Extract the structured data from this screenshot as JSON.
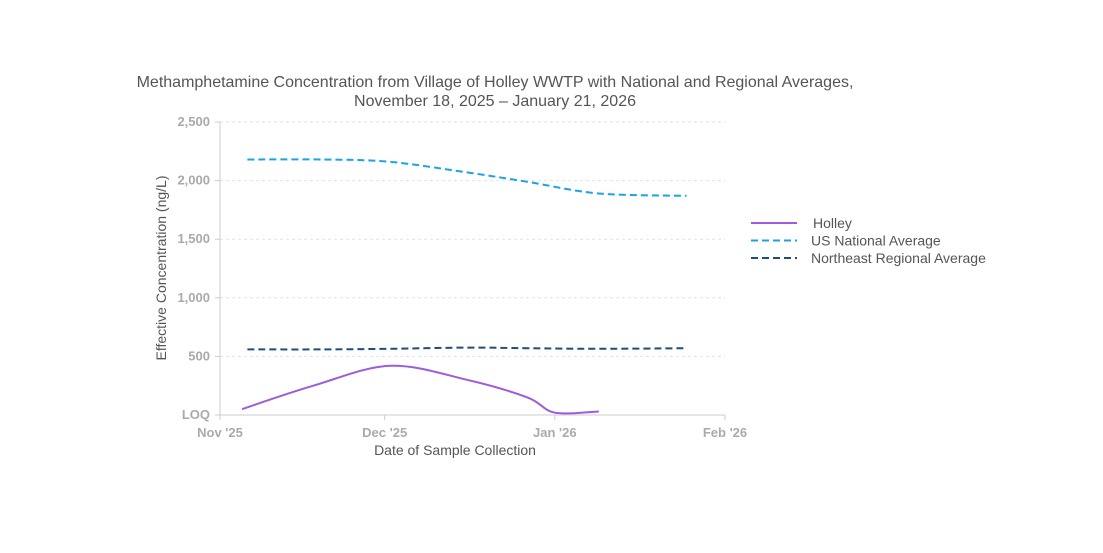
{
  "chart_data": {
    "type": "line",
    "title_lines": [
      "Methamphetamine Concentration from Village of Holley WWTP with National and Regional Averages,",
      "November 18, 2025 – January 21, 2026"
    ],
    "xlabel": "Date of Sample Collection",
    "ylabel": "Effective Concentration (ng/L)",
    "x_axis": {
      "type": "date",
      "range": [
        "2025-11-01",
        "2026-02-01"
      ],
      "ticks": [
        {
          "date": "2025-11-01",
          "label": "Nov '25"
        },
        {
          "date": "2025-12-01",
          "label": "Dec '25"
        },
        {
          "date": "2026-01-01",
          "label": "Jan '26"
        },
        {
          "date": "2026-02-01",
          "label": "Feb '26"
        }
      ]
    },
    "y_axis": {
      "range": [
        0,
        2500
      ],
      "ticks": [
        {
          "value": 0,
          "label": "LOQ"
        },
        {
          "value": 500,
          "label": "500"
        },
        {
          "value": 1000,
          "label": "1,000"
        },
        {
          "value": 1500,
          "label": "1,500"
        },
        {
          "value": 2000,
          "label": "2,000"
        },
        {
          "value": 2500,
          "label": "2,500"
        }
      ]
    },
    "grid": true,
    "legend_position": "right",
    "series": [
      {
        "name": "Holley",
        "color": "#9d5ce0",
        "dash": "solid",
        "points": [
          [
            "2025-11-05",
            50
          ],
          [
            "2025-11-18",
            250
          ],
          [
            "2025-12-02",
            420
          ],
          [
            "2025-12-16",
            300
          ],
          [
            "2025-12-27",
            150
          ],
          [
            "2026-01-01",
            20
          ],
          [
            "2026-01-09",
            30
          ]
        ]
      },
      {
        "name": "US National Average",
        "color": "#1aa3e8",
        "dash": "dashed",
        "points": [
          [
            "2025-11-06",
            2180
          ],
          [
            "2025-11-20",
            2180
          ],
          [
            "2025-12-02",
            2160
          ],
          [
            "2025-12-16",
            2070
          ],
          [
            "2025-12-27",
            1990
          ],
          [
            "2026-01-09",
            1890
          ],
          [
            "2026-01-25",
            1870
          ]
        ]
      },
      {
        "name": "Northeast Regional Average",
        "color": "#1f4e79",
        "dash": "dashed",
        "points": [
          [
            "2025-11-06",
            560
          ],
          [
            "2025-11-20",
            560
          ],
          [
            "2025-12-02",
            565
          ],
          [
            "2025-12-16",
            575
          ],
          [
            "2025-12-27",
            570
          ],
          [
            "2026-01-09",
            565
          ],
          [
            "2026-01-25",
            570
          ]
        ]
      }
    ]
  }
}
